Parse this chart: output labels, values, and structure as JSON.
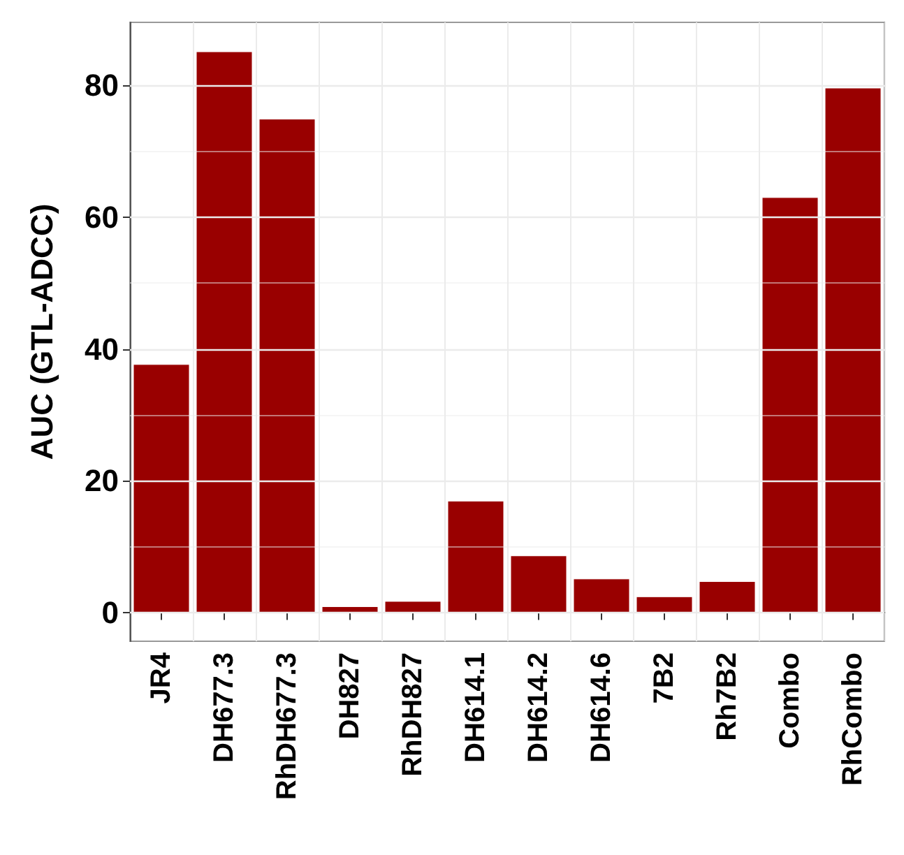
{
  "chart_data": {
    "type": "bar",
    "ylabel": "AUC (GTL-ADCC)",
    "categories": [
      "JR4",
      "DH677.3",
      "RhDH677.3",
      "DH827",
      "RhDH827",
      "DH614.1",
      "DH614.2",
      "DH614.6",
      "7B2",
      "Rh7B2",
      "Combo",
      "RhCombo"
    ],
    "values": [
      37.7,
      85.1,
      74.9,
      1.0,
      1.8,
      17.0,
      8.7,
      5.2,
      2.5,
      4.8,
      63.0,
      79.6
    ],
    "color": "#990000",
    "ylim": [
      -4.3,
      89.5
    ],
    "yticks": [
      0,
      20,
      40,
      60,
      80
    ],
    "grid": true
  }
}
